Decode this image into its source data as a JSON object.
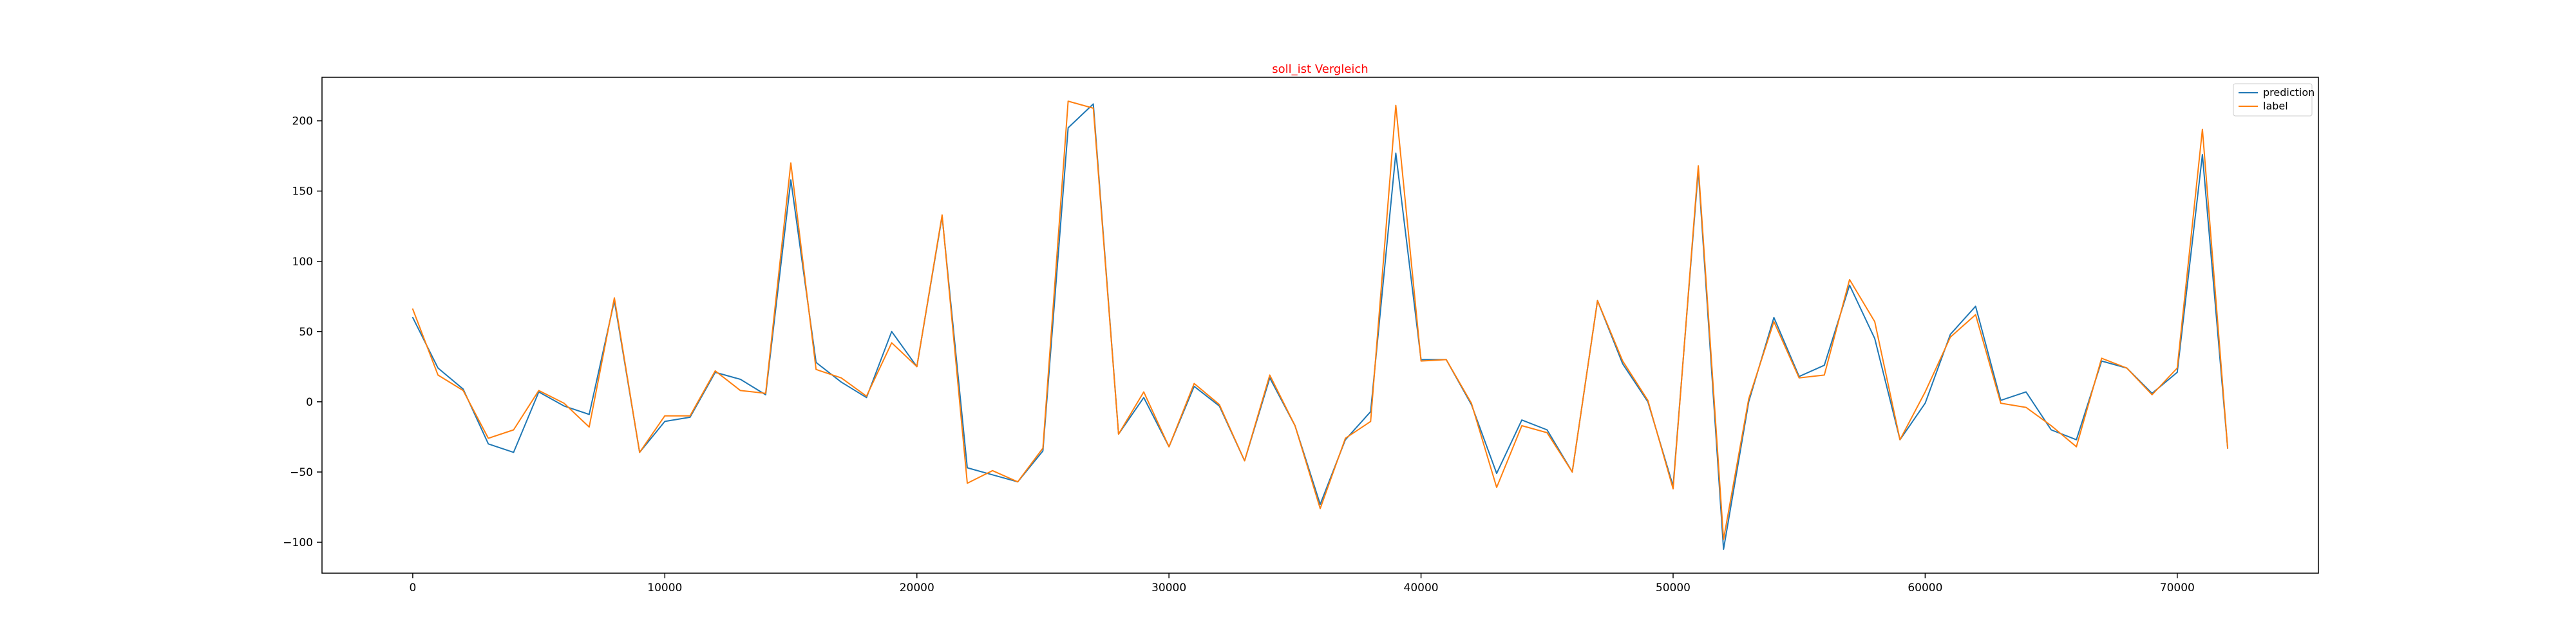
{
  "chart_data": {
    "type": "line",
    "title": "soll_ist Vergleich",
    "title_color": "#ff0000",
    "xlabel": "",
    "ylabel": "",
    "xlim": [
      -3600,
      75600
    ],
    "ylim": [
      -122,
      231
    ],
    "xticks": [
      0,
      10000,
      20000,
      30000,
      40000,
      50000,
      60000,
      70000
    ],
    "xtick_labels": [
      "0",
      "10000",
      "20000",
      "30000",
      "40000",
      "50000",
      "60000",
      "70000"
    ],
    "yticks": [
      -100,
      -50,
      0,
      50,
      100,
      150,
      200
    ],
    "ytick_labels": [
      "−100",
      "−50",
      "0",
      "50",
      "100",
      "150",
      "200"
    ],
    "grid": false,
    "legend_position": "top-right",
    "x": [
      0,
      1000,
      2000,
      3000,
      4000,
      5000,
      6000,
      7000,
      8000,
      9000,
      10000,
      11000,
      12000,
      13000,
      14000,
      15000,
      16000,
      17000,
      18000,
      19000,
      20000,
      21000,
      22000,
      23000,
      24000,
      25000,
      26000,
      27000,
      28000,
      29000,
      30000,
      31000,
      32000,
      33000,
      34000,
      35000,
      36000,
      37000,
      38000,
      39000,
      40000,
      41000,
      42000,
      43000,
      44000,
      45000,
      46000,
      47000,
      48000,
      49000,
      50000,
      51000,
      52000,
      53000,
      54000,
      55000,
      56000,
      57000,
      58000,
      59000,
      60000,
      61000,
      62000,
      63000,
      64000,
      65000,
      66000,
      67000,
      68000,
      69000,
      70000,
      71000,
      72000
    ],
    "series": [
      {
        "name": "prediction",
        "color": "#1f77b4",
        "values": [
          60,
          24,
          9,
          -30,
          -36,
          7,
          -3,
          -9,
          72,
          -36,
          -14,
          -11,
          21,
          16,
          5,
          158,
          28,
          14,
          3,
          50,
          25,
          132,
          -47,
          -52,
          -57,
          -35,
          195,
          212,
          -23,
          3,
          -32,
          11,
          -3,
          -42,
          17,
          -17,
          -73,
          -27,
          -7,
          177,
          30,
          30,
          -2,
          -51,
          -13,
          -20,
          -50,
          72,
          27,
          0,
          -60,
          165,
          -105,
          0,
          60,
          18,
          26,
          83,
          45,
          -27,
          -1,
          48,
          68,
          1,
          7,
          -20,
          -27,
          29,
          24,
          6,
          21,
          176,
          -33
        ]
      },
      {
        "name": "label",
        "color": "#ff7f0e",
        "values": [
          66,
          19,
          8,
          -26,
          -20,
          8,
          -1,
          -18,
          74,
          -36,
          -10,
          -10,
          22,
          8,
          6,
          170,
          23,
          17,
          4,
          42,
          25,
          133,
          -58,
          -49,
          -57,
          -33,
          214,
          209,
          -23,
          7,
          -32,
          13,
          -2,
          -42,
          19,
          -17,
          -76,
          -26,
          -14,
          211,
          29,
          30,
          -1,
          -61,
          -17,
          -22,
          -50,
          72,
          29,
          1,
          -62,
          168,
          -98,
          2,
          57,
          17,
          19,
          87,
          57,
          -27,
          7,
          46,
          62,
          -1,
          -4,
          -17,
          -32,
          31,
          24,
          5,
          24,
          194,
          -33
        ]
      }
    ]
  }
}
